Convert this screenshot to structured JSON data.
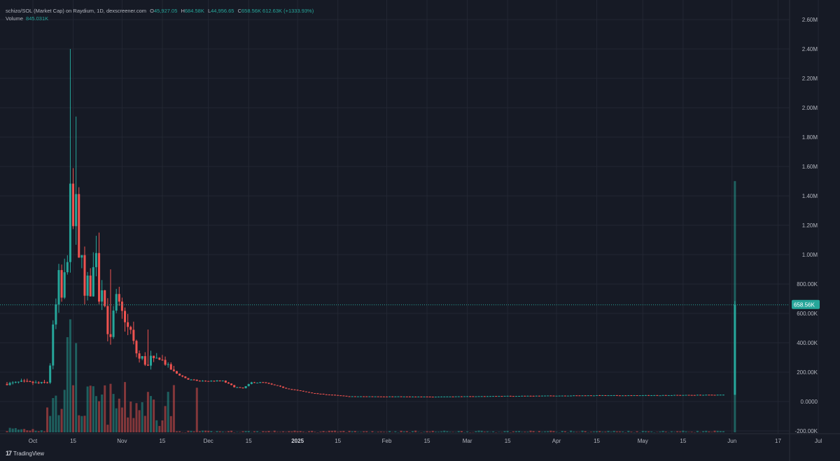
{
  "header": {
    "symbol": "schizo/SOL (Market Cap) on Raydium, 1D, dexscreener.com",
    "o_label": "O",
    "o_value": "45,927.05",
    "h_label": "H",
    "h_value": "684.58K",
    "l_label": "L",
    "l_value": "44,956.65",
    "c_label": "C",
    "c_value": "658.56K",
    "change": "612.63K (+1333.93%)"
  },
  "volume": {
    "label": "Volume",
    "value": "845.031K"
  },
  "footer": {
    "brand": "TradingView",
    "logo": "17"
  },
  "colors": {
    "up": "#26a69a",
    "down": "#ef5350",
    "background": "#161a25",
    "grid": "#232733",
    "text": "#b2b5be"
  },
  "chart_data": {
    "type": "candlestick",
    "title": "schizo/SOL (Market Cap) on Raydium, 1D, dexscreener.com",
    "y_ticks": [
      "2.60M",
      "2.40M",
      "2.20M",
      "2.00M",
      "1.80M",
      "1.60M",
      "1.40M",
      "1.20M",
      "1.00M",
      "800.00K",
      "600.00K",
      "400.00K",
      "200.00K",
      "0.0000",
      "-200.00K"
    ],
    "y_tick_values": [
      2600000,
      2400000,
      2200000,
      2000000,
      1800000,
      1600000,
      1400000,
      1200000,
      1000000,
      800000,
      600000,
      400000,
      200000,
      0,
      -200000
    ],
    "ylim": [
      -200000,
      2650000
    ],
    "last_price_label": "658.56K",
    "last_price_value": 658560,
    "x_ticks": [
      {
        "label": "Oct",
        "day": 0,
        "bold": false
      },
      {
        "label": "15",
        "day": 14,
        "bold": false
      },
      {
        "label": "Nov",
        "day": 31,
        "bold": false
      },
      {
        "label": "15",
        "day": 45,
        "bold": false
      },
      {
        "label": "Dec",
        "day": 61,
        "bold": false
      },
      {
        "label": "15",
        "day": 75,
        "bold": false
      },
      {
        "label": "2025",
        "day": 92,
        "bold": true
      },
      {
        "label": "15",
        "day": 106,
        "bold": false
      },
      {
        "label": "Feb",
        "day": 123,
        "bold": false
      },
      {
        "label": "15",
        "day": 137,
        "bold": false
      },
      {
        "label": "Mar",
        "day": 151,
        "bold": false
      },
      {
        "label": "15",
        "day": 165,
        "bold": false
      },
      {
        "label": "Apr",
        "day": 182,
        "bold": false
      },
      {
        "label": "15",
        "day": 196,
        "bold": false
      },
      {
        "label": "May",
        "day": 212,
        "bold": false
      },
      {
        "label": "15",
        "day": 226,
        "bold": false
      },
      {
        "label": "Jun",
        "day": 243,
        "bold": false
      },
      {
        "label": "17",
        "day": 259,
        "bold": false
      },
      {
        "label": "Jul",
        "day": 273,
        "bold": false
      }
    ],
    "anchors": [
      [
        -9,
        120000
      ],
      [
        -4,
        135000
      ],
      [
        -1,
        130000
      ],
      [
        2,
        125000
      ],
      [
        5,
        130000
      ],
      [
        6,
        250000
      ],
      [
        7,
        500000
      ],
      [
        8,
        650000
      ],
      [
        9,
        850000
      ],
      [
        10,
        700000
      ],
      [
        11,
        850000
      ],
      [
        12,
        1000000
      ],
      [
        13,
        1400000
      ],
      [
        14,
        1200000
      ],
      [
        15,
        1350000
      ],
      [
        16,
        950000
      ],
      [
        17,
        1050000
      ],
      [
        18,
        700000
      ],
      [
        19,
        820000
      ],
      [
        20,
        750000
      ],
      [
        21,
        900000
      ],
      [
        22,
        1050000
      ],
      [
        23,
        700000
      ],
      [
        24,
        800000
      ],
      [
        25,
        650000
      ],
      [
        26,
        480000
      ],
      [
        27,
        420000
      ],
      [
        28,
        600000
      ],
      [
        29,
        700000
      ],
      [
        30,
        650000
      ],
      [
        31,
        600000
      ],
      [
        32,
        560000
      ],
      [
        33,
        500000
      ],
      [
        34,
        480000
      ],
      [
        35,
        400000
      ],
      [
        36,
        330000
      ],
      [
        37,
        290000
      ],
      [
        38,
        300000
      ],
      [
        39,
        260000
      ],
      [
        40,
        240000
      ],
      [
        41,
        300000
      ],
      [
        42,
        280000
      ],
      [
        43,
        290000
      ],
      [
        44,
        300000
      ],
      [
        45,
        280000
      ],
      [
        46,
        260000
      ],
      [
        47,
        240000
      ],
      [
        48,
        220000
      ],
      [
        49,
        200000
      ],
      [
        51,
        180000
      ],
      [
        54,
        150000
      ],
      [
        58,
        140000
      ],
      [
        62,
        140000
      ],
      [
        66,
        140000
      ],
      [
        70,
        100000
      ],
      [
        73,
        90000
      ],
      [
        76,
        130000
      ],
      [
        80,
        130000
      ],
      [
        84,
        110000
      ],
      [
        88,
        90000
      ],
      [
        92,
        75000
      ],
      [
        98,
        55000
      ],
      [
        104,
        45000
      ],
      [
        110,
        35000
      ],
      [
        120,
        35000
      ],
      [
        135,
        33000
      ],
      [
        150,
        35000
      ],
      [
        165,
        38000
      ],
      [
        180,
        40000
      ],
      [
        195,
        42000
      ],
      [
        210,
        42000
      ],
      [
        225,
        44000
      ],
      [
        240,
        45927
      ]
    ],
    "spikes": [
      [
        13,
        2400000
      ],
      [
        15,
        1940000
      ],
      [
        23,
        1150000
      ],
      [
        27,
        900000
      ],
      [
        40,
        490000
      ]
    ],
    "last_candle": {
      "open": 45927.05,
      "high": 684580,
      "low": 44956.65,
      "close": 658560,
      "volume": 845031
    }
  }
}
